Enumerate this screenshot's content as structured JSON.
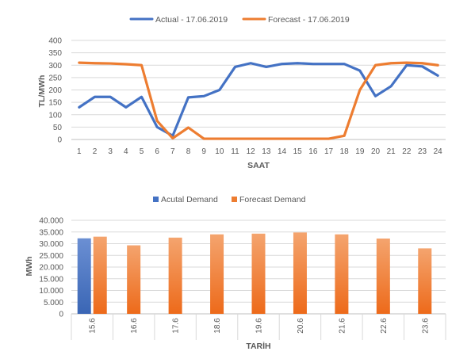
{
  "chart_data": [
    {
      "type": "line",
      "title": "",
      "xlabel": "SAAT",
      "ylabel": "TL/MWh",
      "ylim": [
        0,
        400
      ],
      "yticks": [
        0,
        50,
        100,
        150,
        200,
        250,
        300,
        350,
        400
      ],
      "grid": true,
      "legend_position": "top",
      "x": [
        1,
        2,
        3,
        4,
        5,
        6,
        7,
        8,
        9,
        10,
        11,
        12,
        13,
        14,
        15,
        16,
        17,
        18,
        19,
        20,
        21,
        22,
        23,
        24
      ],
      "series": [
        {
          "name": "Actual - 17.06.2019",
          "color": "#4472C4",
          "values": [
            130,
            172,
            172,
            130,
            172,
            50,
            15,
            170,
            175,
            200,
            293,
            308,
            293,
            305,
            308,
            305,
            305,
            305,
            278,
            175,
            215,
            300,
            295,
            258
          ]
        },
        {
          "name": "Forecast - 17.06.2019",
          "color": "#ED7D31",
          "values": [
            310,
            308,
            307,
            304,
            300,
            75,
            5,
            48,
            3,
            3,
            3,
            3,
            3,
            3,
            3,
            3,
            3,
            15,
            200,
            300,
            308,
            310,
            308,
            300
          ]
        }
      ]
    },
    {
      "type": "bar",
      "title": "",
      "xlabel": "TARİH",
      "ylabel": "MWh",
      "ylim": [
        0,
        40000
      ],
      "yticks": [
        "0",
        "5.000",
        "10.000",
        "15.000",
        "20.000",
        "25.000",
        "30.000",
        "35.000",
        "40.000"
      ],
      "grid": true,
      "legend_position": "top",
      "categories": [
        "15.6",
        "16.6",
        "17.6",
        "18.6",
        "19.6",
        "20.6",
        "21.6",
        "22.6",
        "23.6"
      ],
      "series": [
        {
          "name": "Acutal Demand",
          "color": "#4472C4",
          "values": [
            32300,
            null,
            null,
            null,
            null,
            null,
            null,
            null,
            null
          ]
        },
        {
          "name": "Forecast Demand",
          "color": "#ED7D31",
          "values": [
            33000,
            29300,
            32600,
            34000,
            34300,
            34800,
            34000,
            32200,
            28000
          ]
        }
      ]
    }
  ]
}
